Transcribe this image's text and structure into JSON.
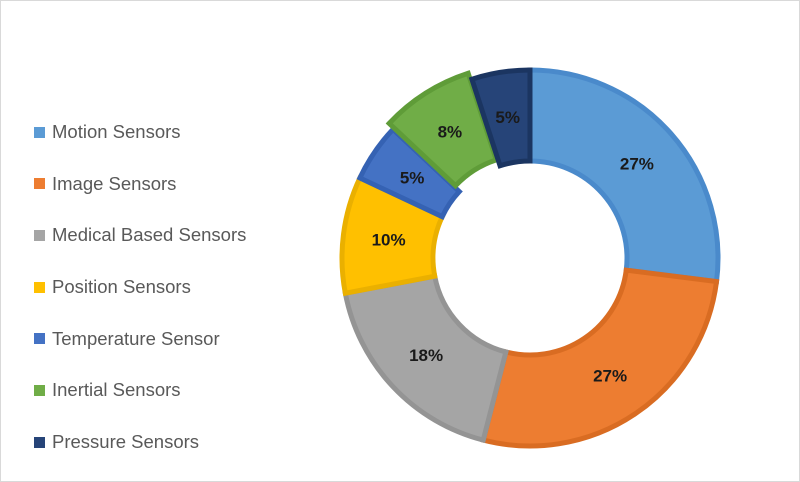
{
  "chart_data": {
    "type": "pie",
    "variant": "donut",
    "title": "",
    "legend_position": "left",
    "categories": [
      "Motion Sensors",
      "Image Sensors",
      "Medical Based Sensors",
      "Position Sensors",
      "Temperature Sensor",
      "Inertial Sensors",
      "Pressure Sensors"
    ],
    "values": [
      27,
      27,
      18,
      10,
      5,
      8,
      5
    ],
    "data_labels": [
      "27%",
      "27%",
      "18%",
      "10%",
      "5%",
      "8%",
      "5%"
    ],
    "colors": [
      "#5b9bd5",
      "#ed7d31",
      "#a5a5a5",
      "#ffc000",
      "#4472c4",
      "#70ad47",
      "#264478"
    ],
    "edge_colors": [
      "#4a8acb",
      "#d96c22",
      "#949494",
      "#eab000",
      "#3562b3",
      "#5f9c38",
      "#1b3561"
    ]
  }
}
